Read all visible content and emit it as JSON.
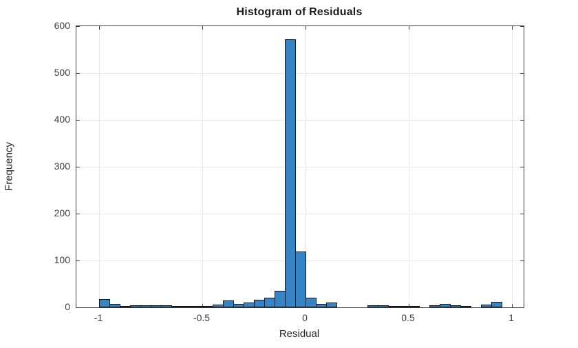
{
  "chart_data": {
    "type": "bar",
    "subtype": "histogram",
    "title": "Histogram of Residuals",
    "xlabel": "Residual",
    "ylabel": "Frequency",
    "bin_start": -1.0,
    "bin_width": 0.05,
    "counts": [
      18,
      8,
      3,
      4,
      5,
      4,
      5,
      1,
      2,
      2,
      2,
      6,
      14,
      7,
      11,
      16,
      21,
      36,
      572,
      119,
      20,
      8,
      10,
      0,
      0,
      0,
      4,
      4,
      2,
      2,
      2,
      0,
      4,
      7,
      4,
      2,
      0,
      6,
      12,
      0
    ],
    "xlim": [
      -1.11,
      1.0567
    ],
    "ylim": [
      0,
      600
    ],
    "x_ticks": [
      -1,
      -0.5,
      0,
      0.5,
      1
    ],
    "x_tick_labels": [
      "-1",
      "-0.5",
      "0",
      "0.5",
      "1"
    ],
    "y_ticks": [
      0,
      100,
      200,
      300,
      400,
      500,
      600
    ],
    "y_tick_labels": [
      "0",
      "100",
      "200",
      "300",
      "400",
      "500",
      "600"
    ],
    "grid": true,
    "legend": null,
    "colors": {
      "bar_fill": "#3584c6",
      "bar_edge": "#15151c",
      "axis": "#3d3d3d",
      "grid": "#e6e6e6",
      "title": "#1a1a1a",
      "label": "#262626"
    }
  }
}
